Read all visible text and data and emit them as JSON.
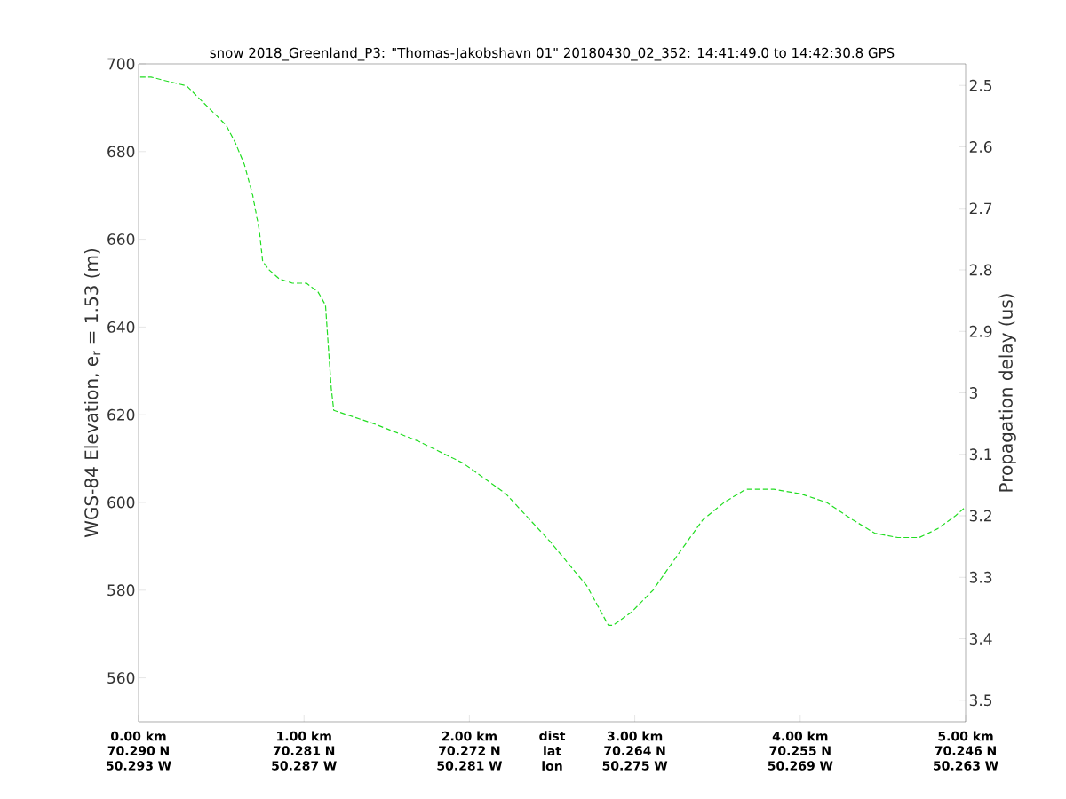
{
  "chart_data": {
    "type": "line",
    "title": "snow 2018_Greenland_P3: \"Thomas-Jakobshavn 01\"  20180430_02_352: 14:41:49.0 to 14:42:30.8 GPS",
    "ylabel": "WGS-84 Elevation, e$_{r}$ = 1.53 (m)",
    "y2label": "Propagation delay (us)",
    "annotations": [
      "dist lat lon",
      "70.290 N 50.293 W",
      "70.281 N 50.287 W",
      "70.272 N 50.281 W",
      "70.264 N 50.275 W",
      "70.255 N 50.269 W",
      "70.246 N 50.263 W"
    ],
    "x": [
      0.01,
      0.075,
      0.18,
      0.29,
      0.37,
      0.45,
      0.53,
      0.585,
      0.64,
      0.69,
      0.73,
      0.75,
      0.79,
      0.85,
      0.93,
      1.015,
      1.085,
      1.13,
      1.15,
      1.165,
      1.18,
      1.42,
      1.69,
      1.96,
      2.22,
      2.49,
      2.71,
      2.84,
      2.87,
      2.98,
      3.11,
      3.24,
      3.41,
      3.54,
      3.67,
      3.73,
      3.84,
      4.0,
      4.16,
      4.24,
      4.32,
      4.45,
      4.59,
      4.72,
      4.83,
      4.94,
      5.0
    ],
    "series": [
      {
        "color": "#22dd22",
        "line_style": "dashed",
        "values": [
          697,
          697,
          696,
          695,
          692,
          689,
          686,
          682,
          677,
          670,
          662,
          655,
          653,
          651,
          650,
          650,
          648,
          645,
          634,
          626,
          621,
          618,
          614,
          609,
          602,
          591,
          581,
          572,
          572,
          575,
          580,
          587,
          596,
          600,
          603,
          603,
          603,
          602,
          600,
          598,
          596,
          593,
          592,
          592,
          594,
          597,
          599
        ]
      }
    ],
    "xlim": [
      0,
      5
    ],
    "xticks": [
      {
        "value": 0,
        "label": "0.00 km"
      },
      {
        "value": 1,
        "label": "1.00 km"
      },
      {
        "value": 2,
        "label": "2.00 km"
      },
      {
        "value": 3,
        "label": "3.00 km"
      },
      {
        "value": 4,
        "label": "4.00 km"
      },
      {
        "value": 5,
        "label": "5.00 km"
      }
    ],
    "ylim": [
      550,
      700
    ],
    "yticks": [
      560,
      580,
      600,
      620,
      640,
      660,
      680,
      700
    ],
    "y2lim": [
      3.535,
      2.465
    ],
    "y2ticks": [
      2.5,
      2.6,
      2.7,
      2.8,
      2.9,
      3,
      3.1,
      3.2,
      3.3,
      3.4,
      3.5
    ],
    "grid": false
  }
}
